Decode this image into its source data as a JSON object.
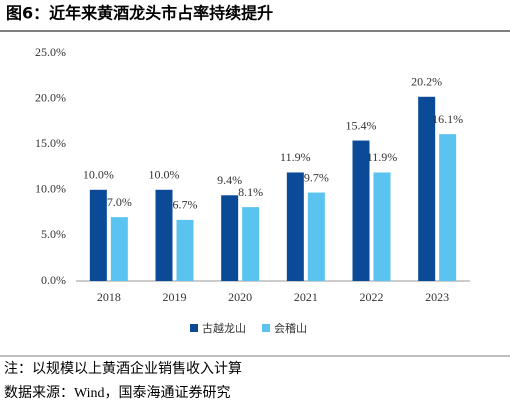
{
  "chart_data": {
    "type": "bar",
    "title": "图6：近年来黄酒龙头市占率持续提升",
    "categories": [
      "2018",
      "2019",
      "2020",
      "2021",
      "2022",
      "2023"
    ],
    "series": [
      {
        "name": "古越龙山",
        "color": "#0b4a97",
        "values": [
          10.0,
          10.0,
          9.4,
          11.9,
          15.4,
          20.2
        ],
        "value_labels": [
          "10.0%",
          "10.0%",
          "9.4%",
          "11.9%",
          "15.4%",
          "20.2%"
        ]
      },
      {
        "name": "会稽山",
        "color": "#5bc3f0",
        "values": [
          7.0,
          6.7,
          8.1,
          9.7,
          11.9,
          16.1
        ],
        "value_labels": [
          "7.0%",
          "6.7%",
          "8.1%",
          "9.7%",
          "11.9%",
          "16.1%"
        ]
      }
    ],
    "ylim": [
      0,
      25
    ],
    "yticks": [
      {
        "value": 0,
        "label": "0.0%"
      },
      {
        "value": 5,
        "label": "5.0%"
      },
      {
        "value": 10,
        "label": "10.0%"
      },
      {
        "value": 15,
        "label": "15.0%"
      },
      {
        "value": 20,
        "label": "20.0%"
      },
      {
        "value": 25,
        "label": "25.0%"
      }
    ],
    "grid": false,
    "legend": "bottom"
  },
  "notes": [
    "注：以规模以上黄酒企业销售收入计算",
    "数据来源：Wind，国泰海通证券研究"
  ]
}
